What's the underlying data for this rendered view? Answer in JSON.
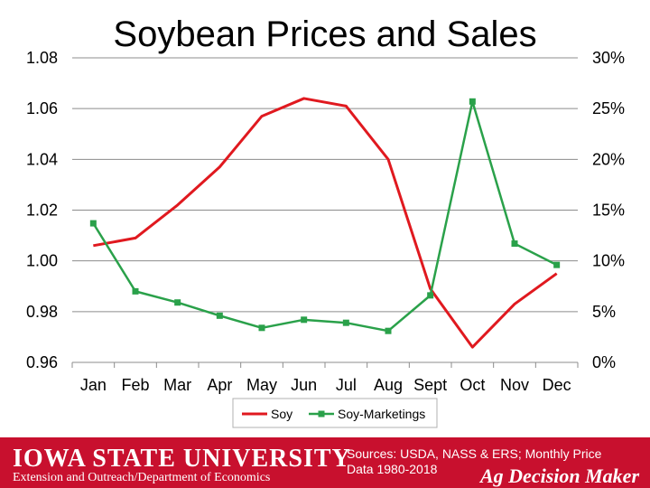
{
  "chart_data": {
    "type": "line",
    "title": "Soybean Prices and Sales",
    "categories": [
      "Jan",
      "Feb",
      "Mar",
      "Apr",
      "May",
      "Jun",
      "Jul",
      "Aug",
      "Sept",
      "Oct",
      "Nov",
      "Dec"
    ],
    "y_left": {
      "range": [
        0.96,
        1.08
      ],
      "ticks": [
        "0.96",
        "0.98",
        "1.00",
        "1.02",
        "1.04",
        "1.06",
        "1.08"
      ]
    },
    "y_right": {
      "range": [
        0,
        30
      ],
      "ticks": [
        "0%",
        "5%",
        "10%",
        "15%",
        "20%",
        "25%",
        "30%"
      ]
    },
    "grid": true,
    "legend_position": "bottom",
    "series": [
      {
        "name": "Soy",
        "axis": "left",
        "color": "#e0191f",
        "marker": "none",
        "values": [
          1.006,
          1.009,
          1.022,
          1.037,
          1.057,
          1.064,
          1.061,
          1.04,
          0.989,
          0.966,
          0.983,
          0.995
        ]
      },
      {
        "name": "Soy-Marketings",
        "axis": "right",
        "color": "#2aa14a",
        "marker": "square",
        "values": [
          13.7,
          7.0,
          5.9,
          4.6,
          3.4,
          4.2,
          3.9,
          3.1,
          6.6,
          25.7,
          11.7,
          9.6
        ]
      }
    ]
  },
  "footer": {
    "logo_text": "IOWA STATE UNIVERSITY",
    "subtitle": "Extension and Outreach/Department of Economics",
    "sources_line1": "Sources: USDA, NASS & ERS; Monthly Price",
    "sources_line2": "Data 1980-2018",
    "brand": "Ag Decision Maker",
    "color": "#c8102e"
  }
}
